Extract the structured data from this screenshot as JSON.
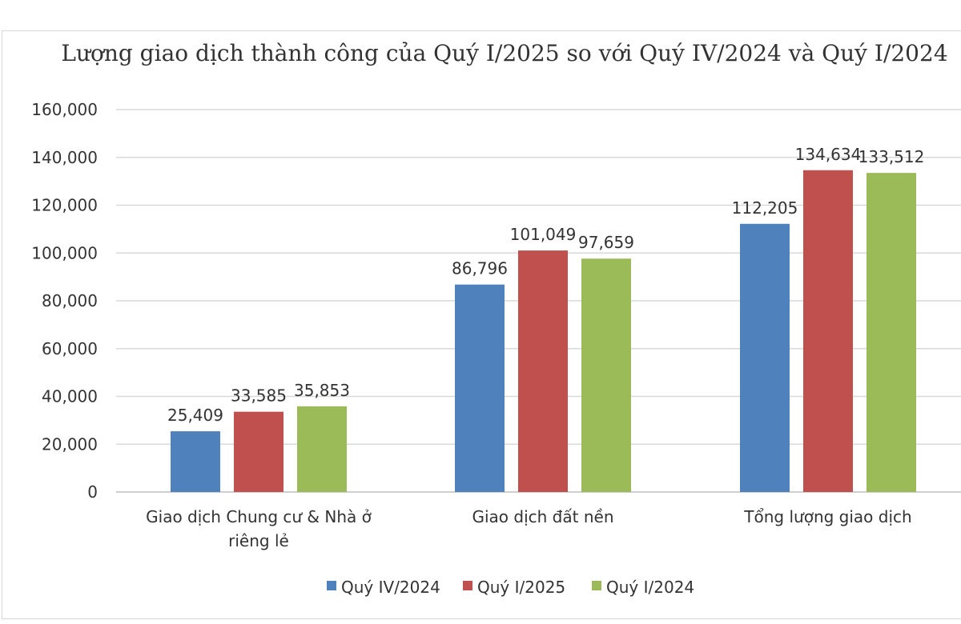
{
  "chart_data": {
    "type": "bar",
    "title": "Lượng giao dịch thành công của Quý I/2025 so với Quý IV/2024 và Quý I/2024",
    "xlabel": "",
    "ylabel": "",
    "ylim": [
      0,
      160000
    ],
    "y_ticks": [
      0,
      20000,
      40000,
      60000,
      80000,
      100000,
      120000,
      140000,
      160000
    ],
    "y_tick_labels": [
      "0",
      "20,000",
      "40,000",
      "60,000",
      "80,000",
      "100,000",
      "120,000",
      "140,000",
      "160,000"
    ],
    "grid": true,
    "legend_position": "bottom",
    "categories": [
      "Giao dịch Chung cư & Nhà ở riêng lẻ",
      "Giao dịch đất nền",
      "Tổng lượng giao dịch"
    ],
    "category_lines": [
      [
        "Giao dịch Chung cư & Nhà ở",
        "riêng lẻ"
      ],
      [
        "Giao dịch đất nền"
      ],
      [
        "Tổng lượng giao dịch"
      ]
    ],
    "series": [
      {
        "name": "Quý IV/2024",
        "color": "#4f81bd",
        "values": [
          25409,
          86796,
          112205
        ],
        "labels": [
          "25,409",
          "86,796",
          "112,205"
        ]
      },
      {
        "name": "Quý I/2025",
        "color": "#c0504d",
        "values": [
          33585,
          101049,
          134634
        ],
        "labels": [
          "33,585",
          "101,049",
          "134,634"
        ]
      },
      {
        "name": "Quý I/2024",
        "color": "#9bbb59",
        "values": [
          35853,
          97659,
          133512
        ],
        "labels": [
          "35,853",
          "97,659",
          "133,512"
        ]
      }
    ]
  }
}
